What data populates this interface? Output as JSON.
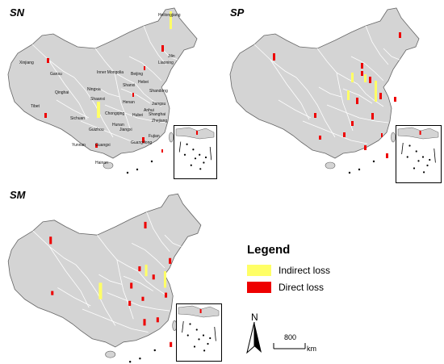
{
  "colors": {
    "land": "#d4d4d4",
    "border": "#ffffff",
    "outline": "#666666",
    "indirect": "#ffff66",
    "direct": "#ee0000"
  },
  "panels": [
    {
      "id": "sn",
      "label": "SN"
    },
    {
      "id": "sp",
      "label": "SP"
    },
    {
      "id": "sm",
      "label": "SM"
    }
  ],
  "provinces": [
    "Heilongjiang",
    "Jilin",
    "Liaoning",
    "Xinjiang",
    "Gansu",
    "Inner Mongolia",
    "Beijing",
    "Hebei",
    "Shanxi",
    "Ningxia",
    "Qinghai",
    "Shaanxi",
    "Shandong",
    "Tibet",
    "Henan",
    "Jiangsu",
    "Sichuan",
    "Chongqing",
    "Hubei",
    "Anhui",
    "Shanghai",
    "Zhejiang",
    "Hunan",
    "Jiangxi",
    "Guizhou",
    "Fujian",
    "Yunnan",
    "Guangxi",
    "Guangdong",
    "Hainan"
  ],
  "legend": {
    "title": "Legend",
    "items": [
      {
        "label": "Indirect loss",
        "icon": "yellow-swatch"
      },
      {
        "label": "Direct loss",
        "icon": "red-swatch"
      }
    ]
  },
  "north_arrow": {
    "letter": "N",
    "icon": "north-arrow-icon"
  },
  "scale_bar": {
    "value": "800",
    "unit": "km"
  }
}
